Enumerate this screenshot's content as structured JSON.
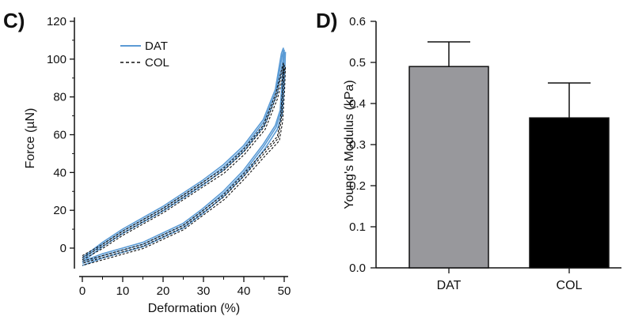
{
  "chart_data": [
    {
      "panel_label": "C)",
      "type": "line",
      "xlabel": "Deformation (%)",
      "ylabel": "Force (µN)",
      "xlim": [
        -2,
        50
      ],
      "ylim": [
        -10,
        120
      ],
      "xticks": [
        0,
        10,
        20,
        30,
        40,
        50
      ],
      "yticks": [
        0,
        20,
        40,
        60,
        80,
        100,
        120
      ],
      "legend_placement": "top-left",
      "series": [
        {
          "name": "DAT",
          "style": "solid",
          "color": "#5b9bd5",
          "loading": [
            [
              0,
              -6
            ],
            [
              5,
              2
            ],
            [
              10,
              9
            ],
            [
              15,
              15
            ],
            [
              20,
              21
            ],
            [
              25,
              28
            ],
            [
              30,
              35
            ],
            [
              35,
              43
            ],
            [
              40,
              53
            ],
            [
              45,
              67
            ],
            [
              48,
              83
            ],
            [
              49.5,
              102
            ],
            [
              50,
              105
            ]
          ],
          "unloading": [
            [
              50,
              105
            ],
            [
              49.8,
              92
            ],
            [
              49.2,
              72
            ],
            [
              48,
              64
            ],
            [
              45,
              54
            ],
            [
              40,
              40
            ],
            [
              35,
              29
            ],
            [
              30,
              20
            ],
            [
              25,
              12
            ],
            [
              20,
              7
            ],
            [
              15,
              2
            ],
            [
              10,
              -1
            ],
            [
              5,
              -4
            ],
            [
              0,
              -8
            ]
          ]
        },
        {
          "name": "COL",
          "style": "dashed",
          "color": "#111111",
          "loading": [
            [
              0,
              -5
            ],
            [
              5,
              1
            ],
            [
              10,
              8
            ],
            [
              15,
              14
            ],
            [
              20,
              20
            ],
            [
              25,
              27
            ],
            [
              30,
              34
            ],
            [
              35,
              41
            ],
            [
              40,
              51
            ],
            [
              45,
              64
            ],
            [
              48,
              80
            ],
            [
              49.5,
              93
            ],
            [
              50,
              97
            ]
          ],
          "unloading": [
            [
              50,
              97
            ],
            [
              49.8,
              85
            ],
            [
              49.3,
              68
            ],
            [
              48.5,
              58
            ],
            [
              45,
              50
            ],
            [
              40,
              38
            ],
            [
              35,
              27
            ],
            [
              30,
              19
            ],
            [
              25,
              11
            ],
            [
              20,
              6
            ],
            [
              15,
              1
            ],
            [
              10,
              -2
            ],
            [
              5,
              -5
            ],
            [
              0,
              -8
            ]
          ]
        }
      ]
    },
    {
      "panel_label": "D)",
      "type": "bar",
      "categories": [
        "DAT",
        "COL"
      ],
      "values": [
        0.49,
        0.365
      ],
      "errors": [
        0.06,
        0.085
      ],
      "colors": [
        "#98989c",
        "#000000"
      ],
      "ylabel": "Young's Modulus (kPa)",
      "xlabel": "",
      "ylim": [
        0,
        0.6
      ],
      "yticks": [
        "0.0",
        "0.1",
        "0.2",
        "0.3",
        "0.4",
        "0.5",
        "0.6"
      ]
    }
  ]
}
